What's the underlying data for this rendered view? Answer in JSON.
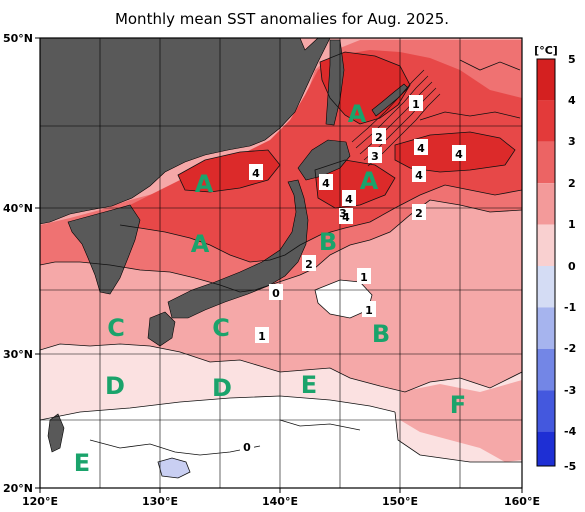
{
  "title": "Monthly mean SST anomalies for Aug. 2025.",
  "axes": {
    "lon_ticks": [
      "120°E",
      "130°E",
      "140°E",
      "150°E",
      "160°E"
    ],
    "lat_ticks": [
      "50°N",
      "40°N",
      "30°N",
      "20°N"
    ]
  },
  "colorbar": {
    "unit": "[°C]",
    "labels": [
      "5",
      "4",
      "3",
      "2",
      "1",
      "0",
      "-1",
      "-2",
      "-3",
      "-4",
      "-5"
    ]
  },
  "regions": [
    {
      "letter": "A"
    },
    {
      "letter": "A"
    },
    {
      "letter": "A"
    },
    {
      "letter": "A"
    },
    {
      "letter": "B"
    },
    {
      "letter": "B"
    },
    {
      "letter": "C"
    },
    {
      "letter": "C"
    },
    {
      "letter": "D"
    },
    {
      "letter": "D"
    },
    {
      "letter": "E"
    },
    {
      "letter": "E"
    },
    {
      "letter": "F"
    }
  ],
  "contour_labels": [
    "4",
    "4",
    "4",
    "4",
    "4",
    "4",
    "4",
    "2",
    "3",
    "3",
    "1",
    "2",
    "2",
    "1",
    "1",
    "0",
    "1",
    "0"
  ],
  "colors": {
    "land": "#595959",
    "anom_0_1": "#fbe1e1",
    "anom_1_2": "#f5a8a8",
    "anom_2_3": "#ef7272",
    "anom_3_4": "#e74848",
    "anom_4_5": "#dc2a2a",
    "negative": "#c9cff2",
    "region_letter": "#1aa36b"
  }
}
